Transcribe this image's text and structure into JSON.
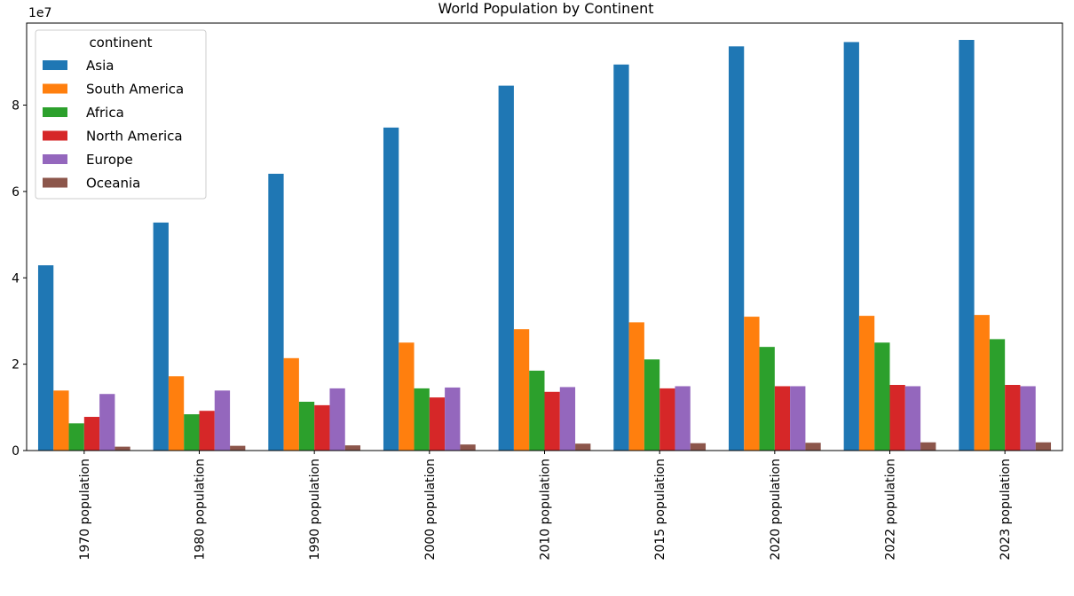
{
  "chart_data": {
    "type": "bar",
    "title": "World Population by Continent",
    "xlabel": "",
    "ylabel": "",
    "offset_label": "1e7",
    "ylim": [
      0,
      99000000.0
    ],
    "yticks": [
      0,
      20000000,
      40000000,
      60000000,
      80000000
    ],
    "ytick_labels": [
      "0",
      "2",
      "4",
      "6",
      "8"
    ],
    "grid": false,
    "legend": {
      "title": "continent",
      "position": "top-left"
    },
    "categories": [
      "1970 population",
      "1980 population",
      "1990 population",
      "2000 population",
      "2010 population",
      "2015 population",
      "2020 population",
      "2022 population",
      "2023 population"
    ],
    "series": [
      {
        "name": "Asia",
        "color": "#1f77b4",
        "values": [
          42900000,
          52800000,
          64100000,
          74800000,
          84500000,
          89400000,
          93600000,
          94600000,
          95100000
        ]
      },
      {
        "name": "South America",
        "color": "#ff7f0e",
        "values": [
          13900000,
          17200000,
          21400000,
          25000000,
          28100000,
          29700000,
          31000000,
          31200000,
          31400000
        ]
      },
      {
        "name": "Africa",
        "color": "#2ca02c",
        "values": [
          6300000,
          8400000,
          11300000,
          14400000,
          18500000,
          21100000,
          24000000,
          25000000,
          25800000
        ]
      },
      {
        "name": "North America",
        "color": "#d62728",
        "values": [
          7800000,
          9200000,
          10500000,
          12300000,
          13600000,
          14400000,
          14900000,
          15200000,
          15200000
        ]
      },
      {
        "name": "Europe",
        "color": "#9467bd",
        "values": [
          13100000,
          13900000,
          14400000,
          14600000,
          14700000,
          14900000,
          14900000,
          14900000,
          14900000
        ]
      },
      {
        "name": "Oceania",
        "color": "#8c564b",
        "values": [
          900000,
          1100000,
          1200000,
          1400000,
          1600000,
          1700000,
          1800000,
          1900000,
          1900000
        ]
      }
    ]
  }
}
